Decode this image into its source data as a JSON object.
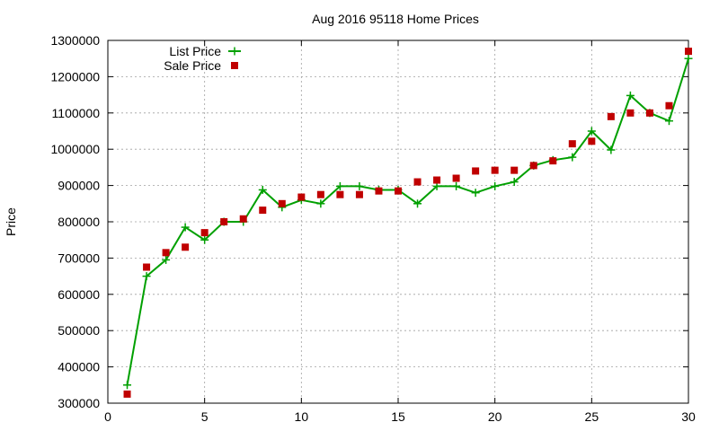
{
  "chart_data": {
    "type": "line",
    "title": "Aug 2016 95118 Home Prices",
    "xlabel": "",
    "ylabel": "Price",
    "xlim": [
      0,
      30
    ],
    "ylim": [
      300000,
      1300000
    ],
    "xticks": [
      0,
      5,
      10,
      15,
      20,
      25,
      30
    ],
    "yticks": [
      300000,
      400000,
      500000,
      600000,
      700000,
      800000,
      900000,
      1000000,
      1100000,
      1200000,
      1300000
    ],
    "grid": true,
    "legend_position": "top-left",
    "series": [
      {
        "name": "List Price",
        "style": "line-points",
        "color": "#00a000",
        "x": [
          1,
          2,
          3,
          4,
          5,
          6,
          7,
          8,
          9,
          10,
          11,
          12,
          13,
          14,
          15,
          16,
          17,
          18,
          19,
          20,
          21,
          22,
          23,
          24,
          25,
          26,
          27,
          28,
          29,
          30
        ],
        "y": [
          350000,
          650000,
          695000,
          785000,
          750000,
          800000,
          800000,
          888000,
          840000,
          860000,
          850000,
          898000,
          898000,
          888000,
          888000,
          850000,
          898000,
          898000,
          880000,
          898000,
          910000,
          955000,
          970000,
          978000,
          1050000,
          998000,
          1148000,
          1100000,
          1078000,
          1250000
        ]
      },
      {
        "name": "Sale Price",
        "style": "points",
        "color": "#c00000",
        "x": [
          1,
          2,
          3,
          4,
          5,
          6,
          7,
          8,
          9,
          10,
          11,
          12,
          13,
          14,
          15,
          16,
          17,
          18,
          19,
          20,
          21,
          22,
          23,
          24,
          25,
          26,
          27,
          28,
          29,
          30
        ],
        "y": [
          325000,
          675000,
          715000,
          730000,
          770000,
          800000,
          808000,
          832000,
          850000,
          868000,
          875000,
          875000,
          875000,
          885000,
          885000,
          910000,
          915000,
          920000,
          940000,
          942000,
          942000,
          955000,
          968000,
          1015000,
          1022000,
          1090000,
          1100000,
          1100000,
          1120000,
          1270000
        ]
      }
    ]
  }
}
